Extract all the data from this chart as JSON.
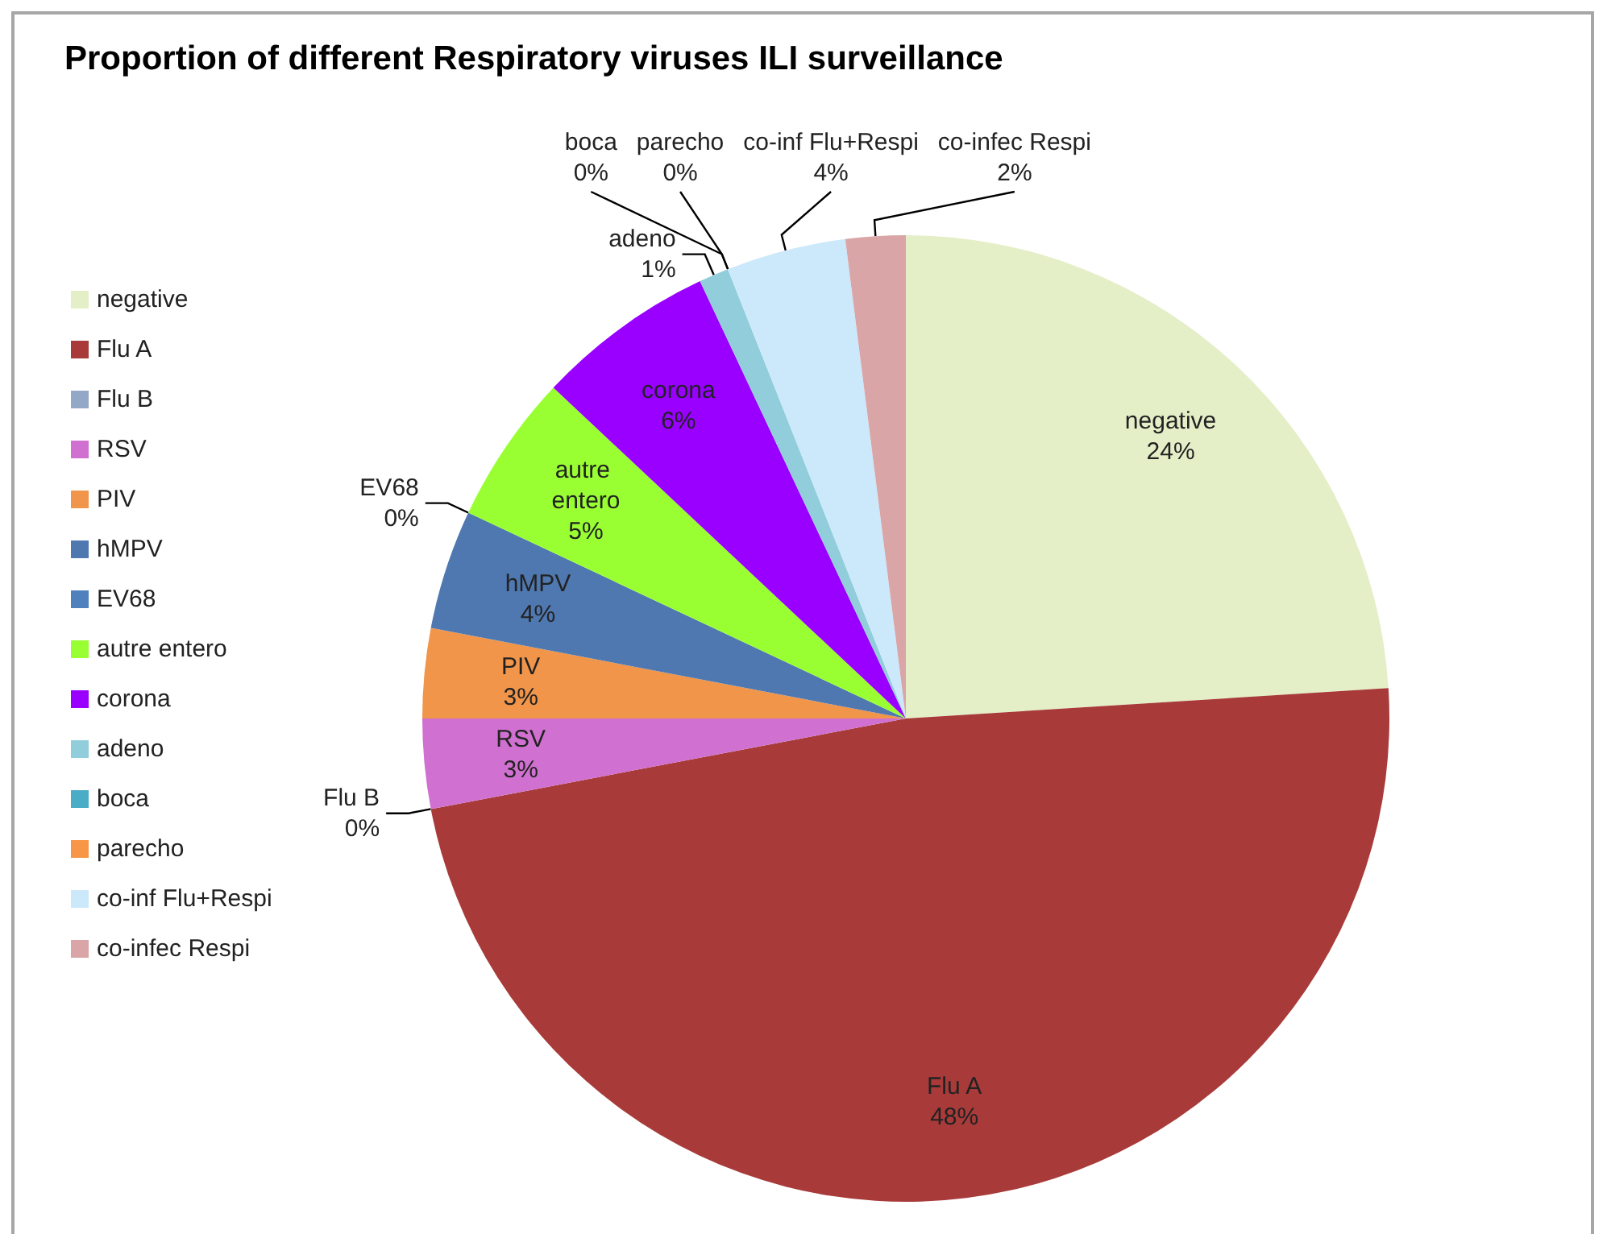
{
  "chart_data": {
    "type": "pie",
    "title": "Proportion of different Respiratory viruses ILI surveillance",
    "categories": [
      "negative",
      "Flu A",
      "Flu B",
      "RSV",
      "PIV",
      "hMPV",
      "EV68",
      "autre entero",
      "corona",
      "adeno",
      "boca",
      "parecho",
      "co-inf Flu+Respi",
      "co-infec Respi"
    ],
    "values": [
      24,
      48,
      0,
      3,
      3,
      4,
      0,
      5,
      6,
      1,
      0,
      0,
      4,
      2
    ],
    "value_labels": [
      "24%",
      "48%",
      "0%",
      "3%",
      "3%",
      "4%",
      "0%",
      "5%",
      "6%",
      "1%",
      "0%",
      "0%",
      "4%",
      "2%"
    ],
    "colors": [
      "#e4efc8",
      "#a83b3a",
      "#93a7c6",
      "#d070d0",
      "#f0954a",
      "#4f78b0",
      "#4f81bd",
      "#99ff33",
      "#9900ff",
      "#92cddc",
      "#4bacc6",
      "#f79646",
      "#cce9fb",
      "#d9a5a6"
    ],
    "legend": "left"
  }
}
